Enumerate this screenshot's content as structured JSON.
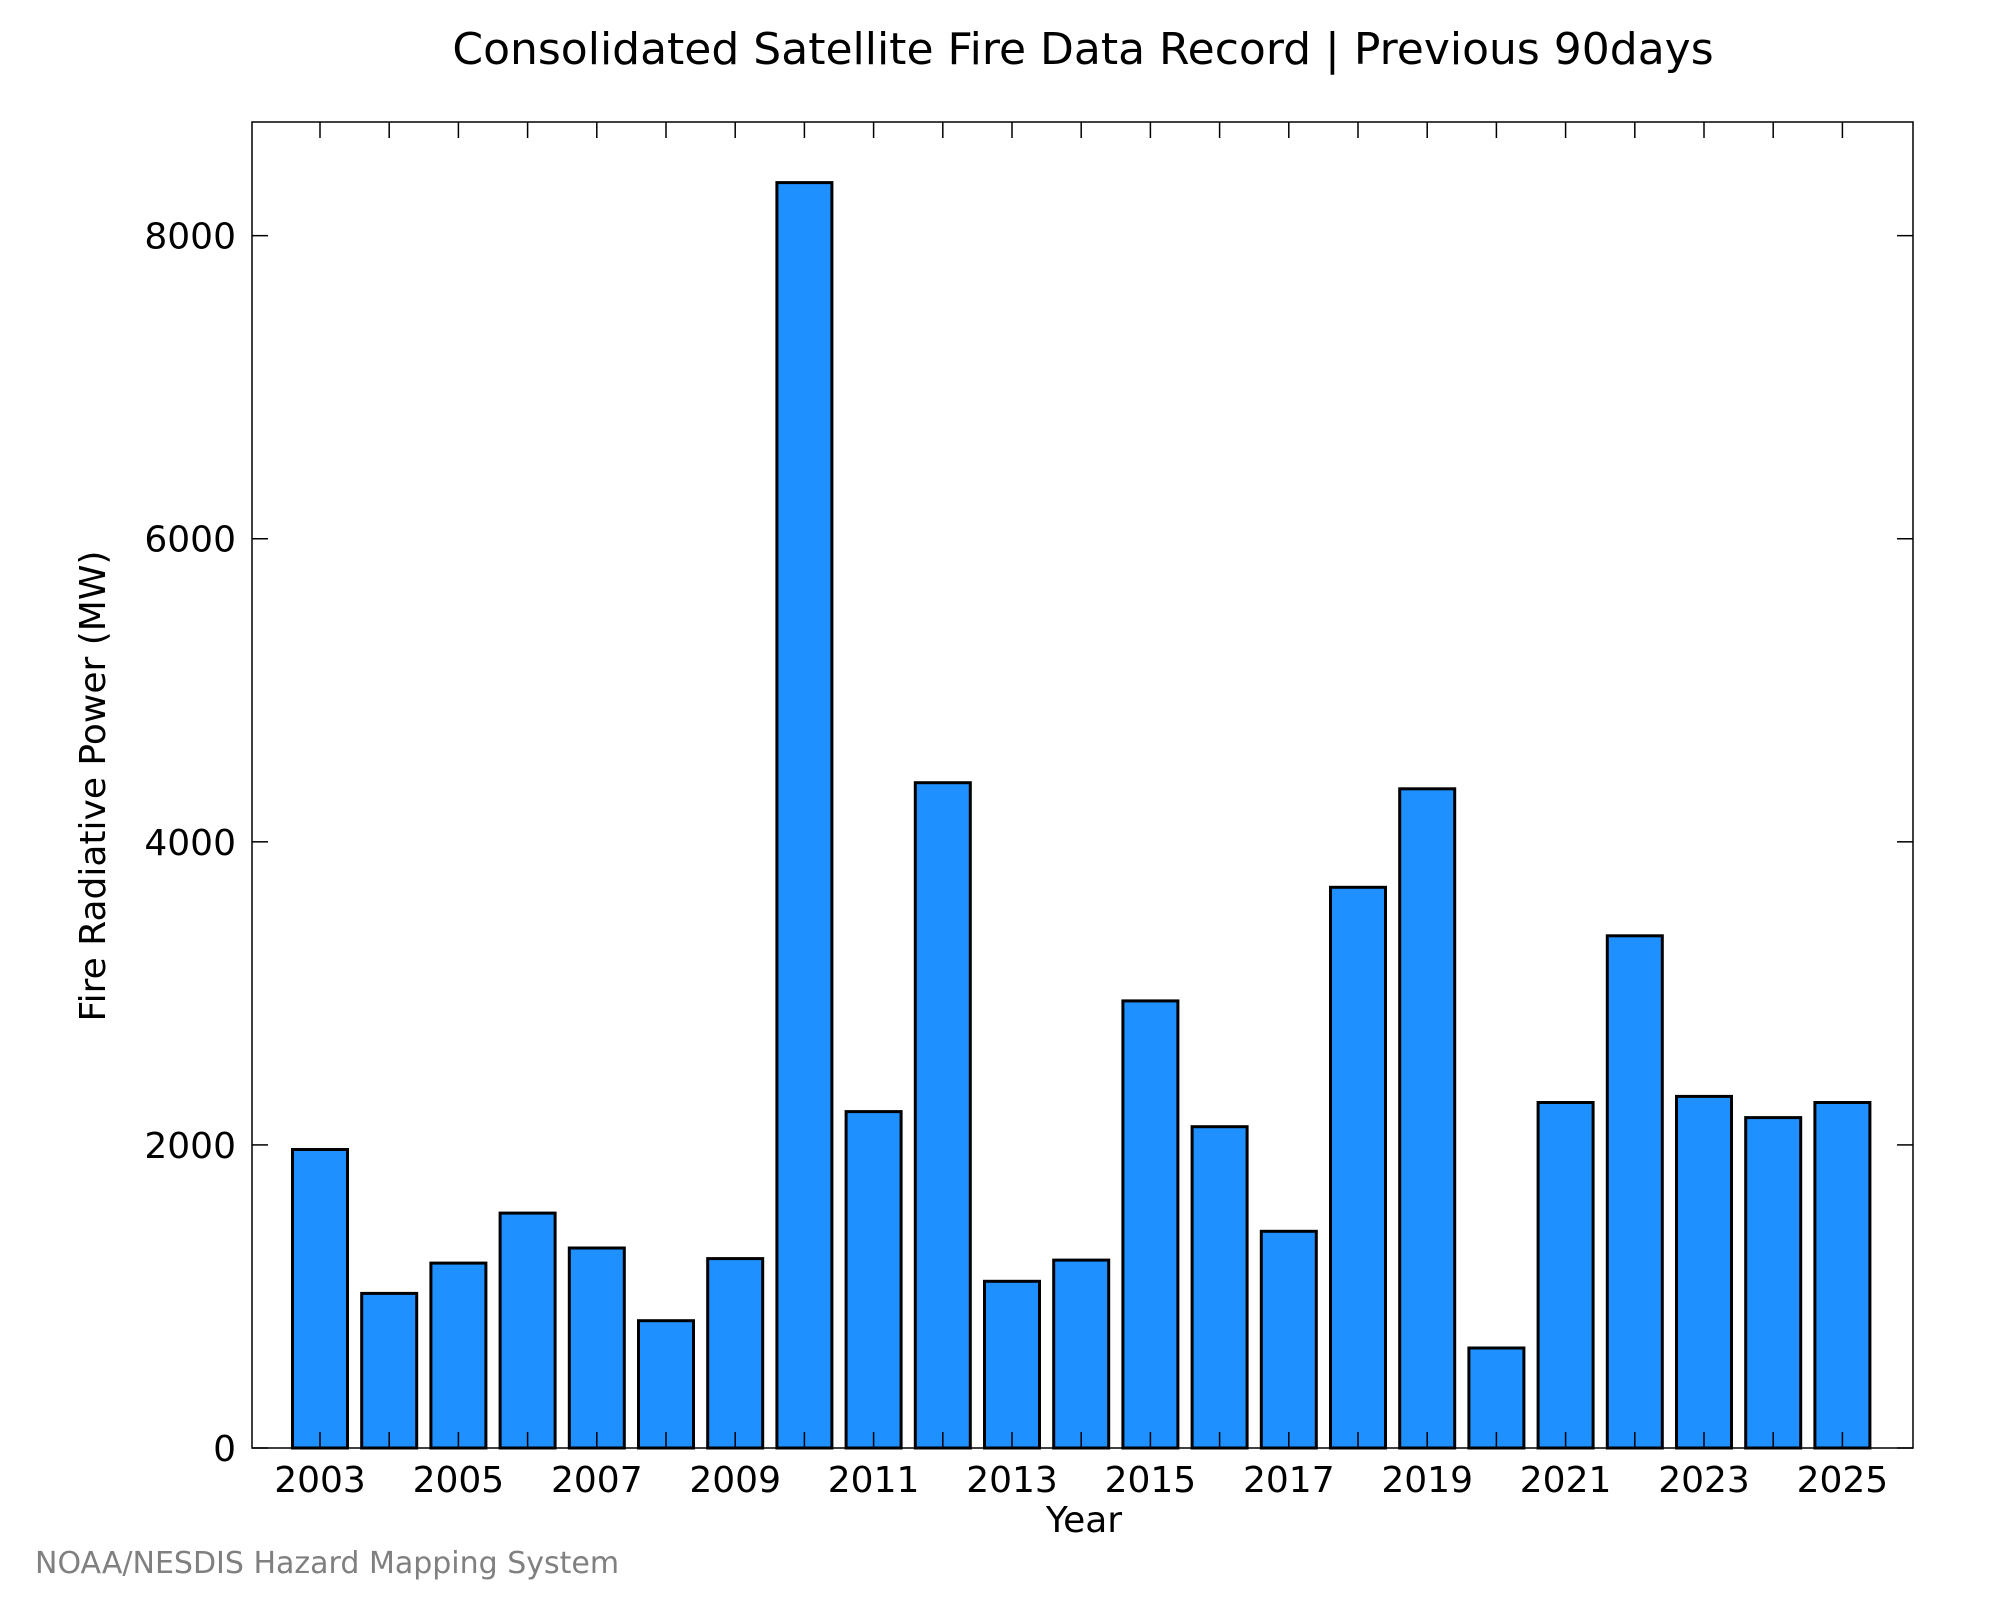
{
  "chart_data": {
    "type": "bar",
    "title": "Consolidated Satellite Fire Data Record | Previous 90days",
    "xlabel": "Year",
    "ylabel": "Fire Radiative Power (MW)",
    "ylim": [
      0,
      8750
    ],
    "yticks": [
      0,
      2000,
      4000,
      6000,
      8000
    ],
    "x_tick_labels": [
      "2003",
      "2005",
      "2007",
      "2009",
      "2011",
      "2013",
      "2015",
      "2017",
      "2019",
      "2021",
      "2023",
      "2025"
    ],
    "categories": [
      "2003",
      "2004",
      "2005",
      "2006",
      "2007",
      "2008",
      "2009",
      "2010",
      "2011",
      "2012",
      "2013",
      "2014",
      "2015",
      "2016",
      "2017",
      "2018",
      "2019",
      "2020",
      "2021",
      "2022",
      "2023",
      "2024",
      "2025"
    ],
    "values": [
      1970,
      1020,
      1220,
      1550,
      1320,
      840,
      1250,
      8350,
      2220,
      4390,
      1100,
      1240,
      2950,
      2120,
      1430,
      3700,
      4350,
      660,
      2280,
      3380,
      2320,
      2180,
      2280
    ],
    "bar_color": "#1e90ff",
    "grid": false,
    "legend": "none"
  },
  "credit": "NOAA/NESDIS Hazard Mapping System"
}
